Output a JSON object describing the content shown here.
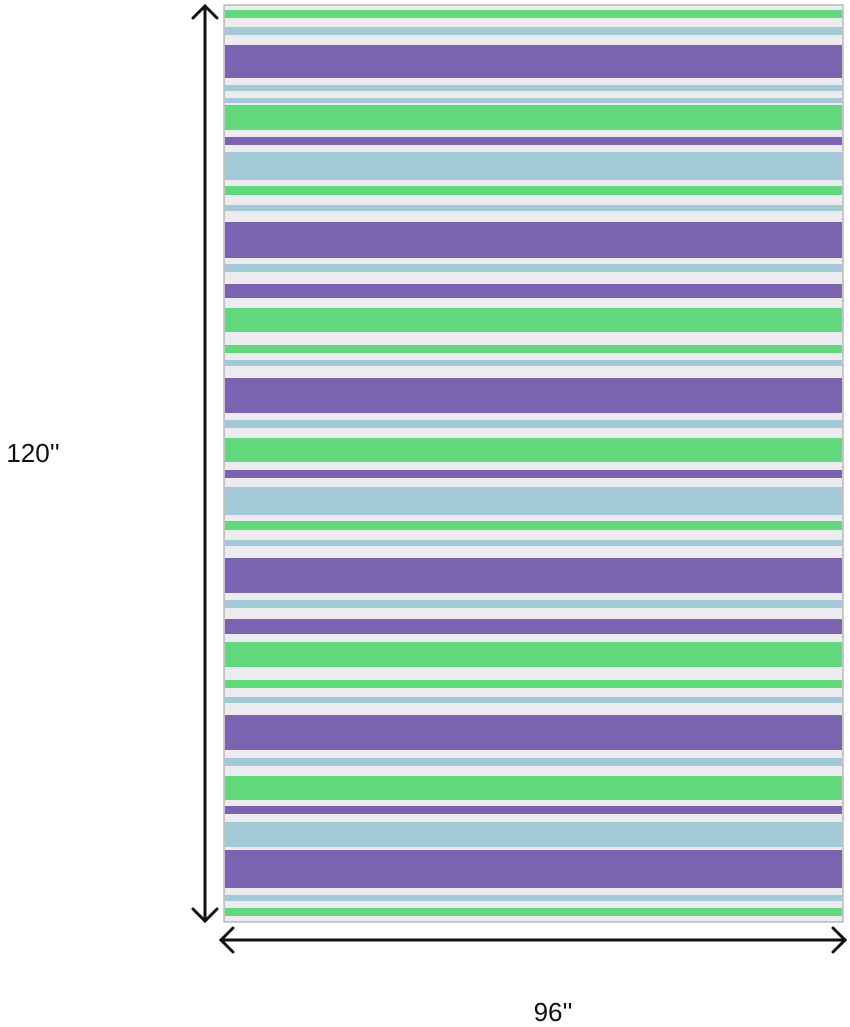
{
  "dimensions": {
    "height": "120''",
    "width": "96''"
  }
}
